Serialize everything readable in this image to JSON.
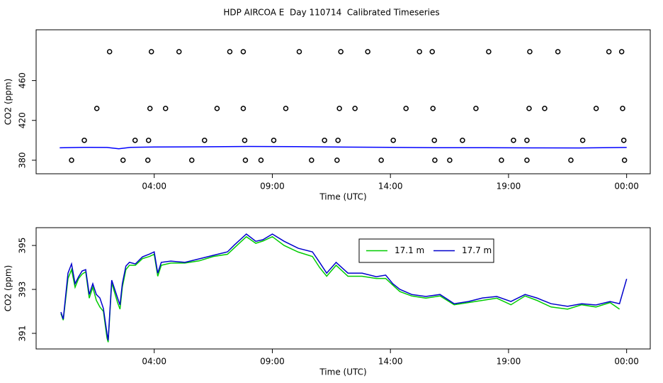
{
  "chart_data": [
    {
      "type": "scatter",
      "title": "HDP AIRCOA E  Day 110714  Calibrated Timeseries",
      "x_label": "Time (UTC)",
      "y_label": "CO2 (ppm)",
      "xlim": [
        -1,
        25
      ],
      "ylim": [
        366.4,
        511
      ],
      "xticks": [
        {
          "value": 4,
          "label": "04:00"
        },
        {
          "value": 9,
          "label": "09:00"
        },
        {
          "value": 14,
          "label": "14:00"
        },
        {
          "value": 19,
          "label": "19:00"
        },
        {
          "value": 24,
          "label": "00:00"
        }
      ],
      "yticks": [
        380,
        420,
        460
      ],
      "series": [
        {
          "type": "scatter",
          "color": "#000000",
          "x": [
            2.11,
            3.88,
            5.05,
            7.2,
            7.77,
            10.14,
            11.9,
            13.04,
            15.23,
            15.77,
            18.16,
            19.9,
            21.09,
            23.25,
            23.79,
            1.57,
            3.82,
            4.48,
            6.66,
            7.77,
            9.57,
            11.84,
            12.5,
            14.66,
            15.8,
            17.62,
            19.87,
            20.53,
            22.71,
            23.83,
            1.04,
            3.19,
            3.76,
            6.13,
            7.83,
            9.06,
            11.21,
            11.78,
            14.12,
            15.86,
            17.05,
            19.21,
            19.78,
            22.14,
            23.88,
            0.5,
            2.68,
            3.73,
            5.59,
            7.86,
            8.52,
            10.66,
            11.74,
            13.61,
            15.88,
            16.51,
            18.7,
            19.78,
            21.64,
            23.91
          ],
          "values": [
            489,
            489,
            489,
            489,
            489,
            489,
            489,
            489,
            489,
            489,
            489,
            489,
            489,
            489,
            489,
            432,
            432,
            432,
            432,
            432,
            432,
            432,
            432,
            432,
            432,
            432,
            432,
            432,
            432,
            432,
            400,
            400,
            400,
            400,
            400,
            400,
            400,
            400,
            400,
            400,
            400,
            400,
            400,
            400,
            400,
            380,
            380,
            380,
            380,
            380,
            380,
            380,
            380,
            380,
            380,
            380,
            380,
            380,
            380,
            380
          ]
        },
        {
          "type": "line",
          "color": "#0000ff",
          "x": [
            0,
            1,
            2,
            2.5,
            3,
            4,
            6,
            8,
            10,
            12,
            14,
            16,
            18,
            20,
            22,
            24
          ],
          "values": [
            392.5,
            393,
            392.8,
            391.5,
            393,
            393.3,
            393.5,
            393.8,
            393.6,
            393.2,
            392.9,
            392.6,
            392.6,
            392.4,
            392.3,
            392.8
          ]
        }
      ]
    },
    {
      "type": "line",
      "x_label": "Time (UTC)",
      "y_label": "CO2 (ppm)",
      "xlim": [
        -1,
        25
      ],
      "ylim": [
        390.29,
        395.81
      ],
      "xticks": [
        {
          "value": 4,
          "label": "04:00"
        },
        {
          "value": 9,
          "label": "09:00"
        },
        {
          "value": 14,
          "label": "14:00"
        },
        {
          "value": 19,
          "label": "19:00"
        },
        {
          "value": 24,
          "label": "00:00"
        }
      ],
      "yticks": [
        391,
        393,
        395
      ],
      "legend": "top",
      "series": [
        {
          "name": "17.1 m",
          "color": "#00cc00",
          "x": [
            0.05,
            0.15,
            0.35,
            0.5,
            0.65,
            0.8,
            0.95,
            1.1,
            1.25,
            1.4,
            1.55,
            1.7,
            1.85,
            2.0,
            2.05,
            2.2,
            2.45,
            2.55,
            2.65,
            2.8,
            2.95,
            3.2,
            3.5,
            3.8,
            4.0,
            4.15,
            4.3,
            4.7,
            5.3,
            5.9,
            6.5,
            7.1,
            7.4,
            7.9,
            8.3,
            8.6,
            9.0,
            9.5,
            10.1,
            10.7,
            11.0,
            11.3,
            11.7,
            12.2,
            12.8,
            13.4,
            13.8,
            14.1,
            14.4,
            14.9,
            15.5,
            16.1,
            16.7,
            17.3,
            17.9,
            18.5,
            19.1,
            19.7,
            20.2,
            20.8,
            21.5,
            22.1,
            22.7,
            23.3,
            23.7
          ],
          "values": [
            391.9,
            391.6,
            393.5,
            393.9,
            393.1,
            393.5,
            393.7,
            393.8,
            392.6,
            393.1,
            392.5,
            392.2,
            392.0,
            390.8,
            390.6,
            393.3,
            392.4,
            392.1,
            393.1,
            393.9,
            394.1,
            394.1,
            394.4,
            394.5,
            394.6,
            393.6,
            394.1,
            394.2,
            394.2,
            394.3,
            394.5,
            394.6,
            394.9,
            395.4,
            395.1,
            395.2,
            395.4,
            395.0,
            394.7,
            394.5,
            394.0,
            393.6,
            394.1,
            393.6,
            393.6,
            393.5,
            393.5,
            393.2,
            392.9,
            392.7,
            392.6,
            392.7,
            392.3,
            392.4,
            392.5,
            392.6,
            392.3,
            392.7,
            392.5,
            392.2,
            392.1,
            392.3,
            392.2,
            392.4,
            392.1
          ]
        },
        {
          "name": "17.7 m",
          "color": "#0000cc",
          "x": [
            0.05,
            0.15,
            0.35,
            0.5,
            0.65,
            0.8,
            0.95,
            1.1,
            1.25,
            1.4,
            1.55,
            1.7,
            1.85,
            2.0,
            2.05,
            2.2,
            2.45,
            2.55,
            2.65,
            2.8,
            2.95,
            3.2,
            3.5,
            3.8,
            4.0,
            4.15,
            4.3,
            4.7,
            5.3,
            5.9,
            6.5,
            7.1,
            7.4,
            7.9,
            8.3,
            8.6,
            9.0,
            9.5,
            10.1,
            10.7,
            11.0,
            11.3,
            11.7,
            12.2,
            12.8,
            13.4,
            13.8,
            14.1,
            14.4,
            14.9,
            15.5,
            16.1,
            16.7,
            17.3,
            17.9,
            18.5,
            19.1,
            19.7,
            20.2,
            20.8,
            21.5,
            22.1,
            22.7,
            23.3,
            23.7,
            24.0
          ],
          "values": [
            391.97,
            391.65,
            393.74,
            394.16,
            393.26,
            393.58,
            393.84,
            393.9,
            392.77,
            393.26,
            392.77,
            392.61,
            392.13,
            391.0,
            390.68,
            393.42,
            392.61,
            392.29,
            393.26,
            394.06,
            394.23,
            394.16,
            394.48,
            394.61,
            394.71,
            393.74,
            394.23,
            394.29,
            394.23,
            394.39,
            394.55,
            394.71,
            395.03,
            395.52,
            395.19,
            395.26,
            395.52,
            395.19,
            394.87,
            394.71,
            394.23,
            393.74,
            394.23,
            393.74,
            393.74,
            393.58,
            393.65,
            393.26,
            393.0,
            392.77,
            392.68,
            392.77,
            392.35,
            392.45,
            392.61,
            392.68,
            392.45,
            392.77,
            392.61,
            392.35,
            392.23,
            392.35,
            392.29,
            392.45,
            392.35,
            393.48
          ]
        }
      ]
    }
  ]
}
